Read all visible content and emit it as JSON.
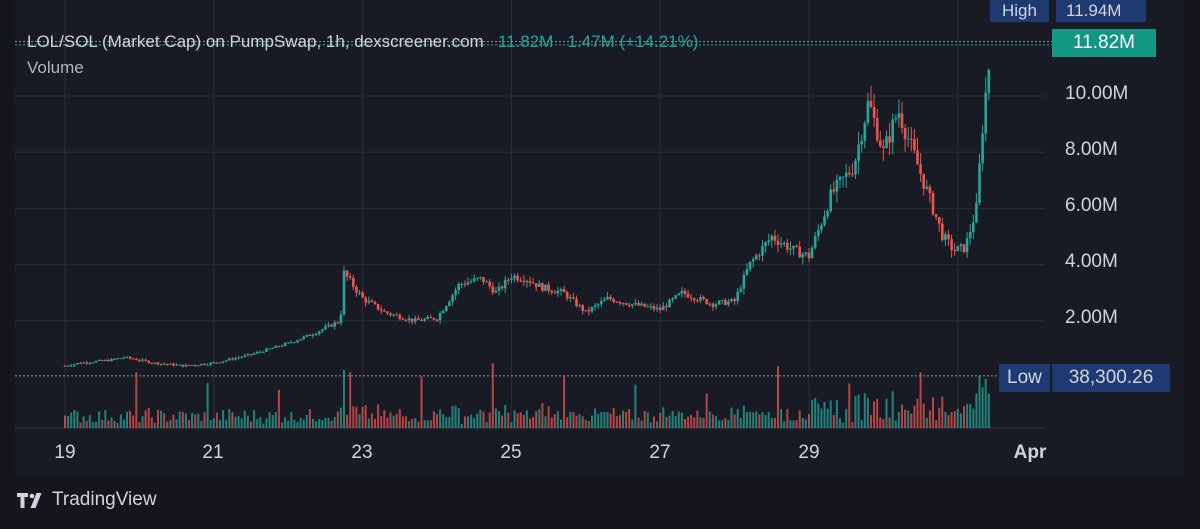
{
  "legend": {
    "symbol": "LOL/SOL (Market Cap) on PumpSwap, 1h, dexscreener.com",
    "last": "11.82M",
    "change": "1.47M (+14.21%)",
    "volume_label": "Volume"
  },
  "price_tags": {
    "high_label": "High",
    "high_value": "11.94M",
    "last_value": "11.82M",
    "low_label": "Low",
    "low_value": "38,300.26"
  },
  "branding": {
    "name": "TradingView",
    "logo_icon": "tradingview-logo-icon"
  },
  "colors": {
    "up": "#26a69a",
    "down": "#ef5350",
    "background": "#181b24",
    "grid": "#2a2e39"
  },
  "chart_data": {
    "type": "candlestick",
    "interval": "1h",
    "y_axis": {
      "ticks": [
        "2.00M",
        "4.00M",
        "6.00M",
        "8.00M",
        "10.00M"
      ],
      "tick_values": [
        2,
        4,
        6,
        8,
        10
      ],
      "unit": "M"
    },
    "x_axis": {
      "ticks": [
        "19",
        "21",
        "23",
        "25",
        "27",
        "29",
        "Apr"
      ],
      "tick_days": [
        19,
        21,
        23,
        25,
        27,
        29,
        31
      ]
    },
    "high_value_m": 11.94,
    "last_value_m": 11.82,
    "low_value_m": 0.0383,
    "series_keypoints": {
      "day": [
        19,
        19.2,
        19.6,
        19.8,
        20.2,
        20.6,
        21,
        21.5,
        22,
        22.3,
        22.7,
        22.75,
        23.0,
        23.3,
        23.7,
        24.0,
        24.3,
        24.6,
        24.8,
        25.0,
        25.2,
        25.4,
        25.7,
        26.0,
        26.3,
        26.6,
        27.0,
        27.3,
        27.7,
        28.0,
        28.2,
        28.5,
        28.8,
        29.0,
        29.3,
        29.6,
        29.8,
        30.0,
        30.2,
        30.4,
        30.6,
        30.8,
        30.95,
        31.1,
        31.25,
        31.35,
        31.45
      ],
      "value_m": [
        0.4,
        0.5,
        0.6,
        0.7,
        0.5,
        0.4,
        0.5,
        0.8,
        1.2,
        1.5,
        2.0,
        3.7,
        2.8,
        2.3,
        2.0,
        2.1,
        3.3,
        3.5,
        3.0,
        3.6,
        3.5,
        3.2,
        3.0,
        2.3,
        2.8,
        2.6,
        2.4,
        3.0,
        2.6,
        2.7,
        4.0,
        5.0,
        4.5,
        4.3,
        6.5,
        7.5,
        9.8,
        8.0,
        9.5,
        8.0,
        6.5,
        5.0,
        4.5,
        4.6,
        6.0,
        9.5,
        11.82
      ]
    }
  }
}
